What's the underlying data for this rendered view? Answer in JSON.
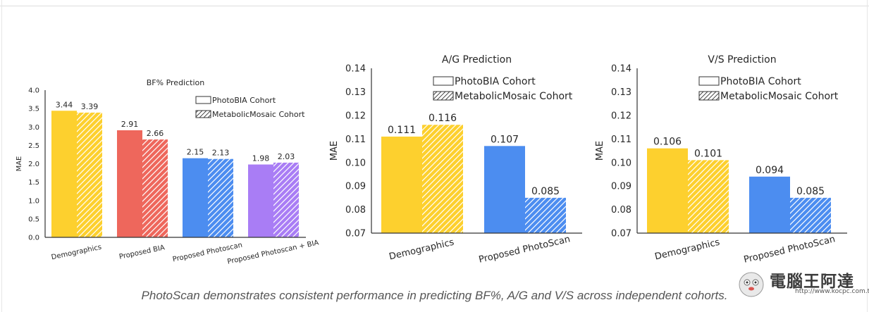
{
  "caption": "PhotoScan demonstrates consistent performance in predicting BF%, A/G and V/S across independent cohorts.",
  "watermark": {
    "text": "電腦王阿達",
    "url": "http://www.kocpc.com.tw/"
  },
  "colors": {
    "yellow": "#FDD02E",
    "red": "#EE675C",
    "blue": "#4C8DF0",
    "purple": "#A97DF5",
    "axis": "#333333"
  },
  "chart_data": [
    {
      "type": "bar",
      "title": "BF% Prediction",
      "ylabel": "MAE",
      "ylim": [
        0.0,
        4.0
      ],
      "yticks": [
        "0.0",
        "0.5",
        "1.0",
        "1.5",
        "2.0",
        "2.5",
        "3.0",
        "3.5",
        "4.0"
      ],
      "categories": [
        "Demographics",
        "Proposed BIA",
        "Proposed Photoscan",
        "Proposed Photoscan + BIA"
      ],
      "category_colors": [
        "yellow",
        "red",
        "blue",
        "purple"
      ],
      "series": [
        {
          "name": "PhotoBIA Cohort",
          "pattern": "solid",
          "values": [
            3.44,
            2.91,
            2.15,
            1.98
          ],
          "labels": [
            "3.44",
            "2.91",
            "2.15",
            "1.98"
          ]
        },
        {
          "name": "MetabolicMosaic Cohort",
          "pattern": "hatch",
          "values": [
            3.39,
            2.66,
            2.13,
            2.03
          ],
          "labels": [
            "3.39",
            "2.66",
            "2.13",
            "2.03"
          ]
        }
      ],
      "legend": "top-right"
    },
    {
      "type": "bar",
      "title": "A/G Prediction",
      "ylabel": "MAE",
      "ylim": [
        0.07,
        0.14
      ],
      "yticks": [
        "0.07",
        "0.08",
        "0.09",
        "0.10",
        "0.11",
        "0.12",
        "0.13",
        "0.14"
      ],
      "categories": [
        "Demographics",
        "Proposed PhotoScan"
      ],
      "category_colors": [
        "yellow",
        "blue"
      ],
      "series": [
        {
          "name": "PhotoBIA Cohort",
          "pattern": "solid",
          "values": [
            0.111,
            0.107
          ],
          "labels": [
            "0.111",
            "0.107"
          ]
        },
        {
          "name": "MetabolicMosaic Cohort",
          "pattern": "hatch",
          "values": [
            0.116,
            0.085
          ],
          "labels": [
            "0.116",
            "0.085"
          ]
        }
      ],
      "legend": "top-right"
    },
    {
      "type": "bar",
      "title": "V/S Prediction",
      "ylabel": "MAE",
      "ylim": [
        0.07,
        0.14
      ],
      "yticks": [
        "0.07",
        "0.08",
        "0.09",
        "0.10",
        "0.11",
        "0.12",
        "0.13",
        "0.14"
      ],
      "categories": [
        "Demographics",
        "Proposed PhotoScan"
      ],
      "category_colors": [
        "yellow",
        "blue"
      ],
      "series": [
        {
          "name": "PhotoBIA Cohort",
          "pattern": "solid",
          "values": [
            0.106,
            0.094
          ],
          "labels": [
            "0.106",
            "0.094"
          ]
        },
        {
          "name": "MetabolicMosaic Cohort",
          "pattern": "hatch",
          "values": [
            0.101,
            0.085
          ],
          "labels": [
            "0.101",
            "0.085"
          ]
        }
      ],
      "legend": "top-right"
    }
  ]
}
